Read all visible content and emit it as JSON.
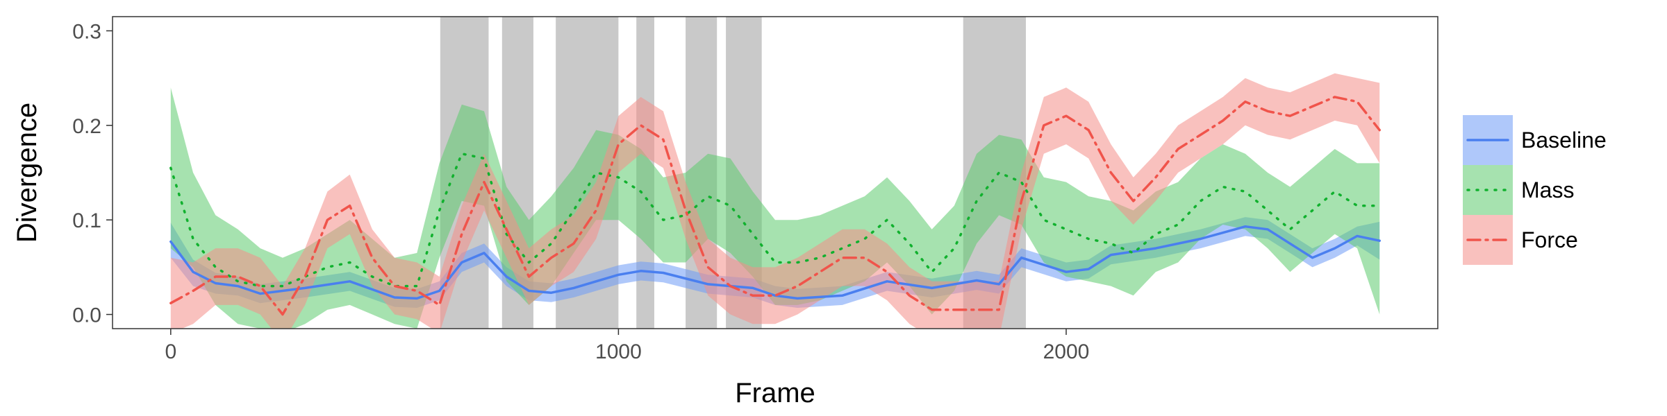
{
  "chart_data": {
    "type": "line",
    "xlabel": "Frame",
    "ylabel": "Divergence",
    "xlim": [
      -130,
      2830
    ],
    "ylim": [
      -0.015,
      0.315
    ],
    "x_ticks": [
      0,
      1000,
      2000
    ],
    "y_ticks": [
      0.0,
      0.1,
      0.2,
      0.3
    ],
    "x_tick_labels": [
      "0",
      "1000",
      "2000"
    ],
    "y_tick_labels": [
      "0.0",
      "0.1",
      "0.2",
      "0.3"
    ],
    "grid": false,
    "legend_position": "right",
    "shaded_regions": [
      [
        602,
        710
      ],
      [
        740,
        810
      ],
      [
        860,
        1000
      ],
      [
        1040,
        1080
      ],
      [
        1150,
        1220
      ],
      [
        1240,
        1320
      ],
      [
        1770,
        1910
      ]
    ],
    "series": [
      {
        "name": "Baseline",
        "line_style": "solid",
        "color": "#4a7fef",
        "band_color": "#6d9af5",
        "x": [
          0,
          50,
          100,
          150,
          200,
          300,
          400,
          500,
          550,
          600,
          650,
          700,
          750,
          800,
          850,
          900,
          950,
          1000,
          1050,
          1100,
          1200,
          1300,
          1350,
          1400,
          1500,
          1600,
          1700,
          1800,
          1850,
          1900,
          2000,
          2050,
          2100,
          2200,
          2300,
          2400,
          2450,
          2500,
          2550,
          2600,
          2650,
          2700
        ],
        "values": [
          0.077,
          0.045,
          0.033,
          0.03,
          0.022,
          0.028,
          0.035,
          0.018,
          0.017,
          0.025,
          0.055,
          0.065,
          0.04,
          0.025,
          0.023,
          0.028,
          0.035,
          0.042,
          0.046,
          0.044,
          0.032,
          0.028,
          0.02,
          0.017,
          0.02,
          0.035,
          0.028,
          0.036,
          0.032,
          0.06,
          0.045,
          0.048,
          0.063,
          0.07,
          0.08,
          0.093,
          0.09,
          0.075,
          0.06,
          0.07,
          0.083,
          0.078
        ],
        "lower": [
          0.06,
          0.03,
          0.022,
          0.02,
          0.012,
          0.018,
          0.025,
          0.008,
          0.007,
          0.015,
          0.045,
          0.055,
          0.03,
          0.015,
          0.013,
          0.018,
          0.025,
          0.032,
          0.036,
          0.034,
          0.022,
          0.018,
          0.01,
          0.007,
          0.01,
          0.025,
          0.018,
          0.026,
          0.022,
          0.05,
          0.035,
          0.038,
          0.053,
          0.06,
          0.07,
          0.083,
          0.08,
          0.065,
          0.05,
          0.06,
          0.073,
          0.058
        ],
        "upper": [
          0.097,
          0.058,
          0.044,
          0.04,
          0.032,
          0.038,
          0.045,
          0.028,
          0.027,
          0.035,
          0.065,
          0.075,
          0.05,
          0.035,
          0.033,
          0.038,
          0.045,
          0.052,
          0.056,
          0.054,
          0.042,
          0.038,
          0.03,
          0.027,
          0.03,
          0.045,
          0.038,
          0.046,
          0.042,
          0.07,
          0.055,
          0.058,
          0.073,
          0.08,
          0.09,
          0.103,
          0.1,
          0.085,
          0.07,
          0.08,
          0.093,
          0.098
        ]
      },
      {
        "name": "Mass",
        "line_style": "dotted",
        "color": "#11b12e",
        "band_color": "#5ccb6e",
        "x": [
          0,
          50,
          100,
          150,
          200,
          250,
          300,
          350,
          400,
          450,
          500,
          550,
          600,
          650,
          700,
          750,
          800,
          850,
          900,
          950,
          1000,
          1050,
          1100,
          1150,
          1200,
          1250,
          1300,
          1350,
          1400,
          1450,
          1500,
          1550,
          1600,
          1650,
          1700,
          1750,
          1800,
          1850,
          1900,
          1950,
          2000,
          2050,
          2100,
          2150,
          2200,
          2250,
          2300,
          2350,
          2400,
          2450,
          2500,
          2550,
          2600,
          2650,
          2700
        ],
        "values": [
          0.155,
          0.08,
          0.05,
          0.035,
          0.03,
          0.03,
          0.04,
          0.05,
          0.055,
          0.04,
          0.03,
          0.03,
          0.11,
          0.17,
          0.165,
          0.085,
          0.055,
          0.075,
          0.11,
          0.15,
          0.145,
          0.13,
          0.1,
          0.105,
          0.125,
          0.115,
          0.085,
          0.055,
          0.055,
          0.06,
          0.07,
          0.08,
          0.1,
          0.075,
          0.045,
          0.07,
          0.12,
          0.15,
          0.14,
          0.1,
          0.09,
          0.08,
          0.075,
          0.065,
          0.085,
          0.095,
          0.12,
          0.135,
          0.13,
          0.11,
          0.09,
          0.11,
          0.13,
          0.115,
          0.115
        ],
        "lower": [
          0.07,
          0.05,
          0.01,
          -0.01,
          -0.015,
          -0.02,
          -0.01,
          0.005,
          0.01,
          0.0,
          -0.01,
          -0.015,
          0.06,
          0.12,
          0.115,
          0.035,
          0.01,
          0.03,
          0.065,
          0.1,
          0.1,
          0.08,
          0.055,
          0.055,
          0.08,
          0.065,
          0.04,
          0.01,
          0.01,
          0.015,
          0.025,
          0.035,
          0.055,
          0.03,
          0.0,
          0.025,
          0.075,
          0.105,
          0.095,
          0.055,
          0.04,
          0.035,
          0.03,
          0.02,
          0.045,
          0.055,
          0.08,
          0.095,
          0.09,
          0.07,
          0.045,
          0.065,
          0.085,
          0.07,
          0.0
        ],
        "upper": [
          0.24,
          0.15,
          0.105,
          0.09,
          0.07,
          0.06,
          0.07,
          0.085,
          0.1,
          0.08,
          0.06,
          0.065,
          0.16,
          0.222,
          0.215,
          0.135,
          0.1,
          0.125,
          0.155,
          0.195,
          0.19,
          0.175,
          0.145,
          0.15,
          0.17,
          0.165,
          0.13,
          0.1,
          0.1,
          0.105,
          0.115,
          0.125,
          0.145,
          0.12,
          0.09,
          0.115,
          0.17,
          0.19,
          0.185,
          0.145,
          0.14,
          0.125,
          0.12,
          0.11,
          0.13,
          0.14,
          0.165,
          0.18,
          0.17,
          0.15,
          0.135,
          0.155,
          0.175,
          0.16,
          0.16
        ]
      },
      {
        "name": "Force",
        "line_style": "dashdot",
        "color": "#f0544b",
        "band_color": "#f48e88",
        "x": [
          0,
          50,
          100,
          150,
          200,
          250,
          300,
          350,
          400,
          450,
          500,
          550,
          600,
          650,
          700,
          750,
          800,
          850,
          900,
          950,
          1000,
          1050,
          1100,
          1150,
          1200,
          1250,
          1300,
          1350,
          1400,
          1450,
          1500,
          1550,
          1600,
          1650,
          1700,
          1750,
          1800,
          1850,
          1900,
          1950,
          2000,
          2050,
          2100,
          2150,
          2200,
          2250,
          2300,
          2350,
          2400,
          2450,
          2500,
          2550,
          2600,
          2650,
          2700
        ],
        "values": [
          0.012,
          0.025,
          0.04,
          0.04,
          0.03,
          0.0,
          0.04,
          0.1,
          0.115,
          0.06,
          0.03,
          0.025,
          0.01,
          0.085,
          0.14,
          0.09,
          0.04,
          0.06,
          0.075,
          0.11,
          0.18,
          0.2,
          0.185,
          0.11,
          0.05,
          0.03,
          0.02,
          0.02,
          0.03,
          0.045,
          0.06,
          0.06,
          0.045,
          0.02,
          0.005,
          0.005,
          0.005,
          0.005,
          0.12,
          0.2,
          0.21,
          0.195,
          0.15,
          0.12,
          0.145,
          0.175,
          0.19,
          0.205,
          0.225,
          0.215,
          0.21,
          0.22,
          0.23,
          0.225,
          0.195
        ],
        "lower": [
          -0.02,
          -0.01,
          0.01,
          0.01,
          0.0,
          -0.03,
          0.01,
          0.07,
          0.085,
          0.03,
          0.0,
          -0.005,
          -0.02,
          0.055,
          0.11,
          0.06,
          0.01,
          0.03,
          0.045,
          0.08,
          0.15,
          0.17,
          0.155,
          0.08,
          0.02,
          0.0,
          -0.01,
          -0.01,
          0.0,
          0.015,
          0.03,
          0.03,
          0.015,
          -0.01,
          -0.025,
          -0.025,
          -0.025,
          -0.025,
          0.09,
          0.17,
          0.18,
          0.165,
          0.12,
          0.095,
          0.12,
          0.15,
          0.165,
          0.18,
          0.2,
          0.19,
          0.185,
          0.195,
          0.205,
          0.2,
          0.16
        ],
        "upper": [
          0.06,
          0.055,
          0.07,
          0.07,
          0.06,
          0.03,
          0.07,
          0.13,
          0.148,
          0.09,
          0.06,
          0.055,
          0.04,
          0.115,
          0.17,
          0.12,
          0.07,
          0.09,
          0.105,
          0.14,
          0.21,
          0.23,
          0.215,
          0.14,
          0.08,
          0.06,
          0.05,
          0.05,
          0.06,
          0.075,
          0.09,
          0.09,
          0.075,
          0.05,
          0.035,
          0.035,
          0.035,
          0.035,
          0.15,
          0.23,
          0.24,
          0.225,
          0.18,
          0.145,
          0.17,
          0.2,
          0.215,
          0.23,
          0.25,
          0.24,
          0.235,
          0.245,
          0.255,
          0.25,
          0.245
        ]
      }
    ]
  }
}
